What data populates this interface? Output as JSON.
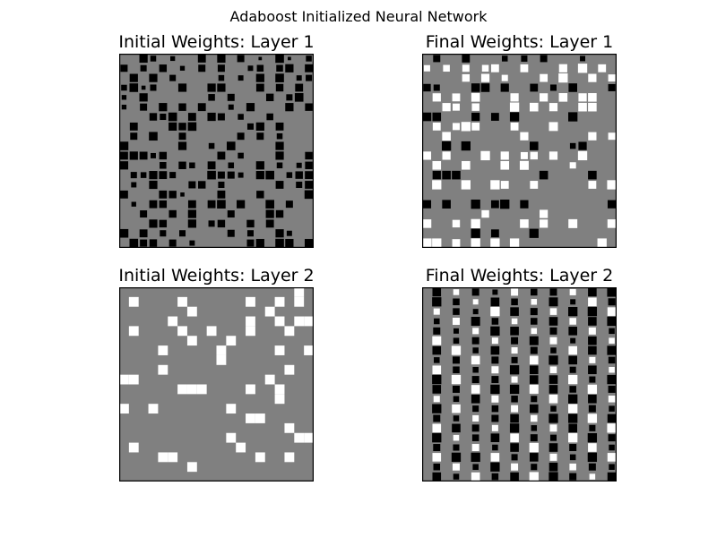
{
  "figure": {
    "suptitle": "Adaboost Initialized Neural Network"
  },
  "chart_data": [
    {
      "type": "heatmap",
      "style": "hinton",
      "title": "Initial Weights: Layer 1",
      "rows": 20,
      "cols": 20,
      "background": "#808080",
      "positive_color": "#ffffff",
      "negative_color": "#000000",
      "max_abs_weight": 1.0,
      "value_encoding": "square side proportional to sqrt(|weight|); white = positive, black = negative",
      "axes_visible": false,
      "rows_data": [
        "00c60400b0c09020d206",
        "9070a040909005808c0b",
        "0c0c0700006050c0d057",
        "6d3700c00cc000b0a0b0",
        "40c000000809000a07d0",
        "4090c0a0b0050c000c0a",
        "000a7d0b0c9060080000",
        "0b000cad000007c0b000",
        "090d0090000090906000",
        "d00000c0060d0000c000",
        "bcb5a00000b06000c00a",
        "c00080a60b0600c0605a",
        "076cb7000d9950cd06ab",
        "050c0009a0700000b07b",
        "b000ba3000b000a0000d",
        "040ba00b0bd0c00d0900",
        "00900a0c0009000ca000",
        "000ca00c07a00a0b0000",
        "d0b0707000090700c500",
        "0d9a0905000009c0dc0c"
      ]
    },
    {
      "type": "heatmap",
      "style": "hinton",
      "title": "Final Weights: Layer 1",
      "rows": 20,
      "cols": 20,
      "background": "#808080",
      "positive_color": "#ffffff",
      "negative_color": "#000000",
      "max_abs_weight": 1.0,
      "value_encoding": "square side proportional to sqrt(|weight|); white = positive, black = negative",
      "axes_visible": false,
      "rows_data": [
        "0900b000607090005000",
        "7080908b00b000c0f0b0",
        "0000a0c07000b0f00c09",
        "a7000dd0c00b070d0009",
        "0c0b0d000c00c0d0cd00",
        "00c90a000f0d0c00dd00",
        "dd000c0b0f00000f0000",
        "0b09fb000b000e000000",
        "00d0000000c000000c09",
        "00f0f000000d0006c000",
        "c0c000f0c09a0c00f000",
        "0d00d000d0e000070000",
        "0cdd00000000d0000d00",
        "0f00f00fb00b00000b0f",
        "00000000000000000000",
        "c0d00f0bf0c00000000c",
        "000000a00000c0000000",
        "d00a0f0000d0c00e000d",
        "00000f0b000f00000000",
        "ff0b0f0f0f00000000f0"
      ]
    },
    {
      "type": "heatmap",
      "style": "hinton",
      "title": "Initial Weights: Layer 2",
      "rows": 20,
      "cols": 20,
      "background": "#808080",
      "positive_color": "#ffffff",
      "negative_color": "#000000",
      "max_abs_weight": 1.0,
      "value_encoding": "square side proportional to sqrt(|weight|); white = positive, black = negative",
      "axes_visible": false,
      "positive_cells": [
        [
          0,
          18
        ],
        [
          1,
          1
        ],
        [
          1,
          6
        ],
        [
          1,
          13
        ],
        [
          1,
          16
        ],
        [
          1,
          18
        ],
        [
          2,
          7
        ],
        [
          2,
          15
        ],
        [
          3,
          5
        ],
        [
          3,
          13
        ],
        [
          3,
          16
        ],
        [
          3,
          18
        ],
        [
          3,
          19
        ],
        [
          4,
          1
        ],
        [
          4,
          6
        ],
        [
          4,
          9
        ],
        [
          4,
          13
        ],
        [
          4,
          17
        ],
        [
          5,
          7
        ],
        [
          5,
          11
        ],
        [
          6,
          4
        ],
        [
          6,
          10
        ],
        [
          6,
          16
        ],
        [
          6,
          19
        ],
        [
          7,
          10
        ],
        [
          8,
          4
        ],
        [
          8,
          17
        ],
        [
          9,
          0
        ],
        [
          9,
          1
        ],
        [
          9,
          15
        ],
        [
          10,
          6
        ],
        [
          10,
          7
        ],
        [
          10,
          8
        ],
        [
          10,
          13
        ],
        [
          10,
          16
        ],
        [
          11,
          16
        ],
        [
          12,
          0
        ],
        [
          12,
          3
        ],
        [
          12,
          11
        ],
        [
          13,
          13
        ],
        [
          13,
          14
        ],
        [
          14,
          17
        ],
        [
          15,
          11
        ],
        [
          15,
          18
        ],
        [
          15,
          19
        ],
        [
          16,
          1
        ],
        [
          16,
          12
        ],
        [
          17,
          4
        ],
        [
          17,
          5
        ],
        [
          17,
          14
        ],
        [
          17,
          17
        ],
        [
          18,
          7
        ]
      ]
    },
    {
      "type": "heatmap",
      "style": "hinton",
      "title": "Final Weights: Layer 2",
      "rows": 20,
      "cols": 20,
      "background": "#808080",
      "positive_color": "#ffffff",
      "negative_color": "#000000",
      "max_abs_weight": 1.0,
      "value_encoding": "square side proportional to sqrt(|weight|); white = positive, black = negative",
      "axes_visible": false,
      "rows_data": [
        "0d060905090809070d0f",
        "0f08050d08060e050d09",
        "0708050f0d09080f0f0d",
        "06090e0806080d080d0f",
        "0905070f0d06090d0906",
        "0e060907090e09050d06",
        "0d0f060d0709060d0d0f",
        "06090d09070d0f0d0708",
        "0d0806090f0d08070d06",
        "0f0f0909070d0d0f070f",
        "0d090d0f0f0e0d080f09",
        "07060d0908070d0f0d08",
        "0f0d0708090d060f0906",
        "090607090d080f0f0f0d",
        "0d0d09070f06090d070f",
        "0f06080d0d09070f0f09",
        "090709060d0f0d090d06",
        "0d0f0f0d070d09060f0d",
        "0809060f09070d080906",
        "0d060d080d0f0f09060d"
      ]
    }
  ]
}
